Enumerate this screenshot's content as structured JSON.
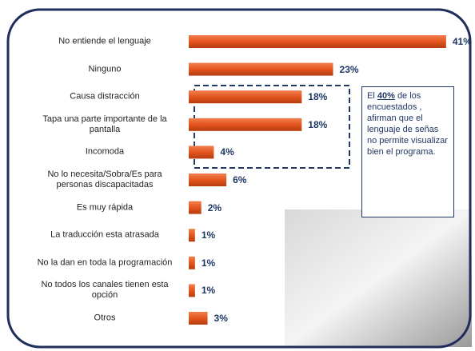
{
  "chart_data": {
    "type": "bar",
    "orientation": "horizontal",
    "categories": [
      "No entiende el lenguaje",
      "Ninguno",
      "Causa distracción",
      "Tapa una parte importante de la pantalla",
      "Incomoda",
      "No lo necesita/Sobra/Es para personas discapacitadas",
      "Es muy rápida",
      "La traducción esta atrasada",
      "No la dan en toda la programación",
      "No todos los canales tienen esta opción",
      "Otros"
    ],
    "values": [
      41,
      23,
      18,
      18,
      4,
      6,
      2,
      1,
      1,
      1,
      3
    ],
    "value_labels": [
      "41%",
      "23%",
      "18%",
      "18%",
      "4%",
      "6%",
      "2%",
      "1%",
      "1%",
      "1%",
      "3%"
    ],
    "color": "#e4551f",
    "annotation": {
      "prefix": "El",
      "highlight": "40%",
      "text": "de los encuestados , afirman que el lenguaje de señas no permite visualizar bien el programa."
    }
  }
}
